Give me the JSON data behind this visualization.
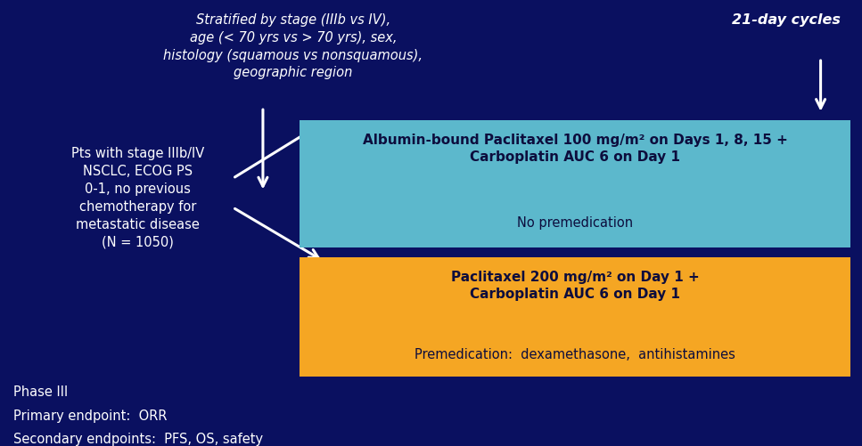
{
  "bg_color": "#0a1060",
  "fig_width": 9.67,
  "fig_height": 5.01,
  "stratified_text": "Stratified by stage (IIIb vs IV),\nage (< 70 yrs vs > 70 yrs), sex,\nhistology (squamous vs nonsquamous),\ngeographic region",
  "cycles_text": "21-day cycles",
  "pts_text": "Pts with stage IIIb/IV\nNSCLC, ECOG PS\n0-1, no previous\nchemotherapy for\nmetastatic disease\n(N = 1050)",
  "box1_color": "#5cb8cc",
  "box1_bold": "Albumin-bound Paclitaxel 100 mg/m² on Days 1, 8, 15 +\nCarboplatin AUC 6 on Day 1",
  "box1_normal": "No premedication",
  "box2_color": "#f5a623",
  "box2_bold": "Paclitaxel 200 mg/m² on Day 1 +\nCarboplatin AUC 6 on Day 1",
  "box2_normal": "Premedication:  dexamethasone,  antihistamines",
  "bottom_lines": [
    "Phase III",
    "Primary endpoint:  ORR",
    "Secondary endpoints:  PFS, OS, safety"
  ],
  "text_color_white": "#ffffff",
  "text_color_dark": "#0d0d3d"
}
